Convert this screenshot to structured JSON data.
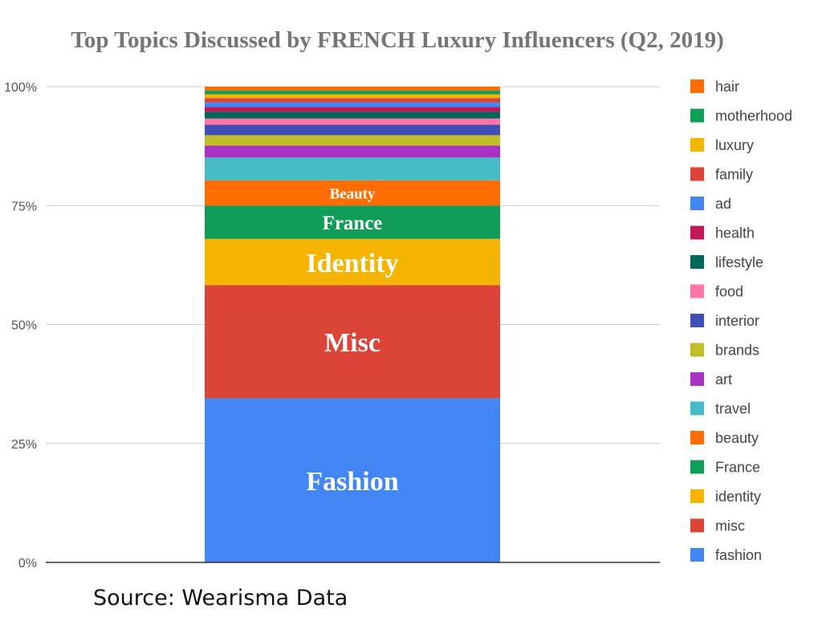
{
  "source_note": "Source: Wearisma Data",
  "chart_data": {
    "type": "bar",
    "stacked": true,
    "normalized": true,
    "title": "Top Topics Discussed by FRENCH Luxury Influencers (Q2, 2019)",
    "xlabel": "",
    "ylabel": "",
    "ylim": [
      0,
      100
    ],
    "y_ticks": [
      "0%",
      "25%",
      "50%",
      "75%",
      "100%"
    ],
    "grid": true,
    "legend_position": "right",
    "series": [
      {
        "name": "fashion",
        "value": 34.5,
        "color": "#4285f4",
        "label": "Fashion"
      },
      {
        "name": "misc",
        "value": 23.8,
        "color": "#db4437",
        "label": "Misc"
      },
      {
        "name": "identity",
        "value": 9.7,
        "color": "#f4b400",
        "label": "Identity"
      },
      {
        "name": "France",
        "value": 7.0,
        "color": "#0f9d58",
        "label": "France"
      },
      {
        "name": "beauty",
        "value": 5.3,
        "color": "#ff6d00",
        "label": "Beauty"
      },
      {
        "name": "travel",
        "value": 4.8,
        "color": "#46bdc6",
        "label": ""
      },
      {
        "name": "art",
        "value": 2.5,
        "color": "#ab30c4",
        "label": ""
      },
      {
        "name": "brands",
        "value": 2.2,
        "color": "#c0bf2a",
        "label": ""
      },
      {
        "name": "interior",
        "value": 2.2,
        "color": "#3f4fb5",
        "label": ""
      },
      {
        "name": "food",
        "value": 1.3,
        "color": "#ff75a8",
        "label": ""
      },
      {
        "name": "lifestyle",
        "value": 1.4,
        "color": "#00695c",
        "label": ""
      },
      {
        "name": "health",
        "value": 1.0,
        "color": "#c2185b",
        "label": ""
      },
      {
        "name": "ad",
        "value": 1.0,
        "color": "#4285f4",
        "label": ""
      },
      {
        "name": "family",
        "value": 0.9,
        "color": "#db4437",
        "label": ""
      },
      {
        "name": "luxury",
        "value": 0.8,
        "color": "#f4b400",
        "label": ""
      },
      {
        "name": "motherhood",
        "value": 0.8,
        "color": "#0f9d58",
        "label": ""
      },
      {
        "name": "hair",
        "value": 0.8,
        "color": "#ff6d00",
        "label": ""
      }
    ]
  }
}
